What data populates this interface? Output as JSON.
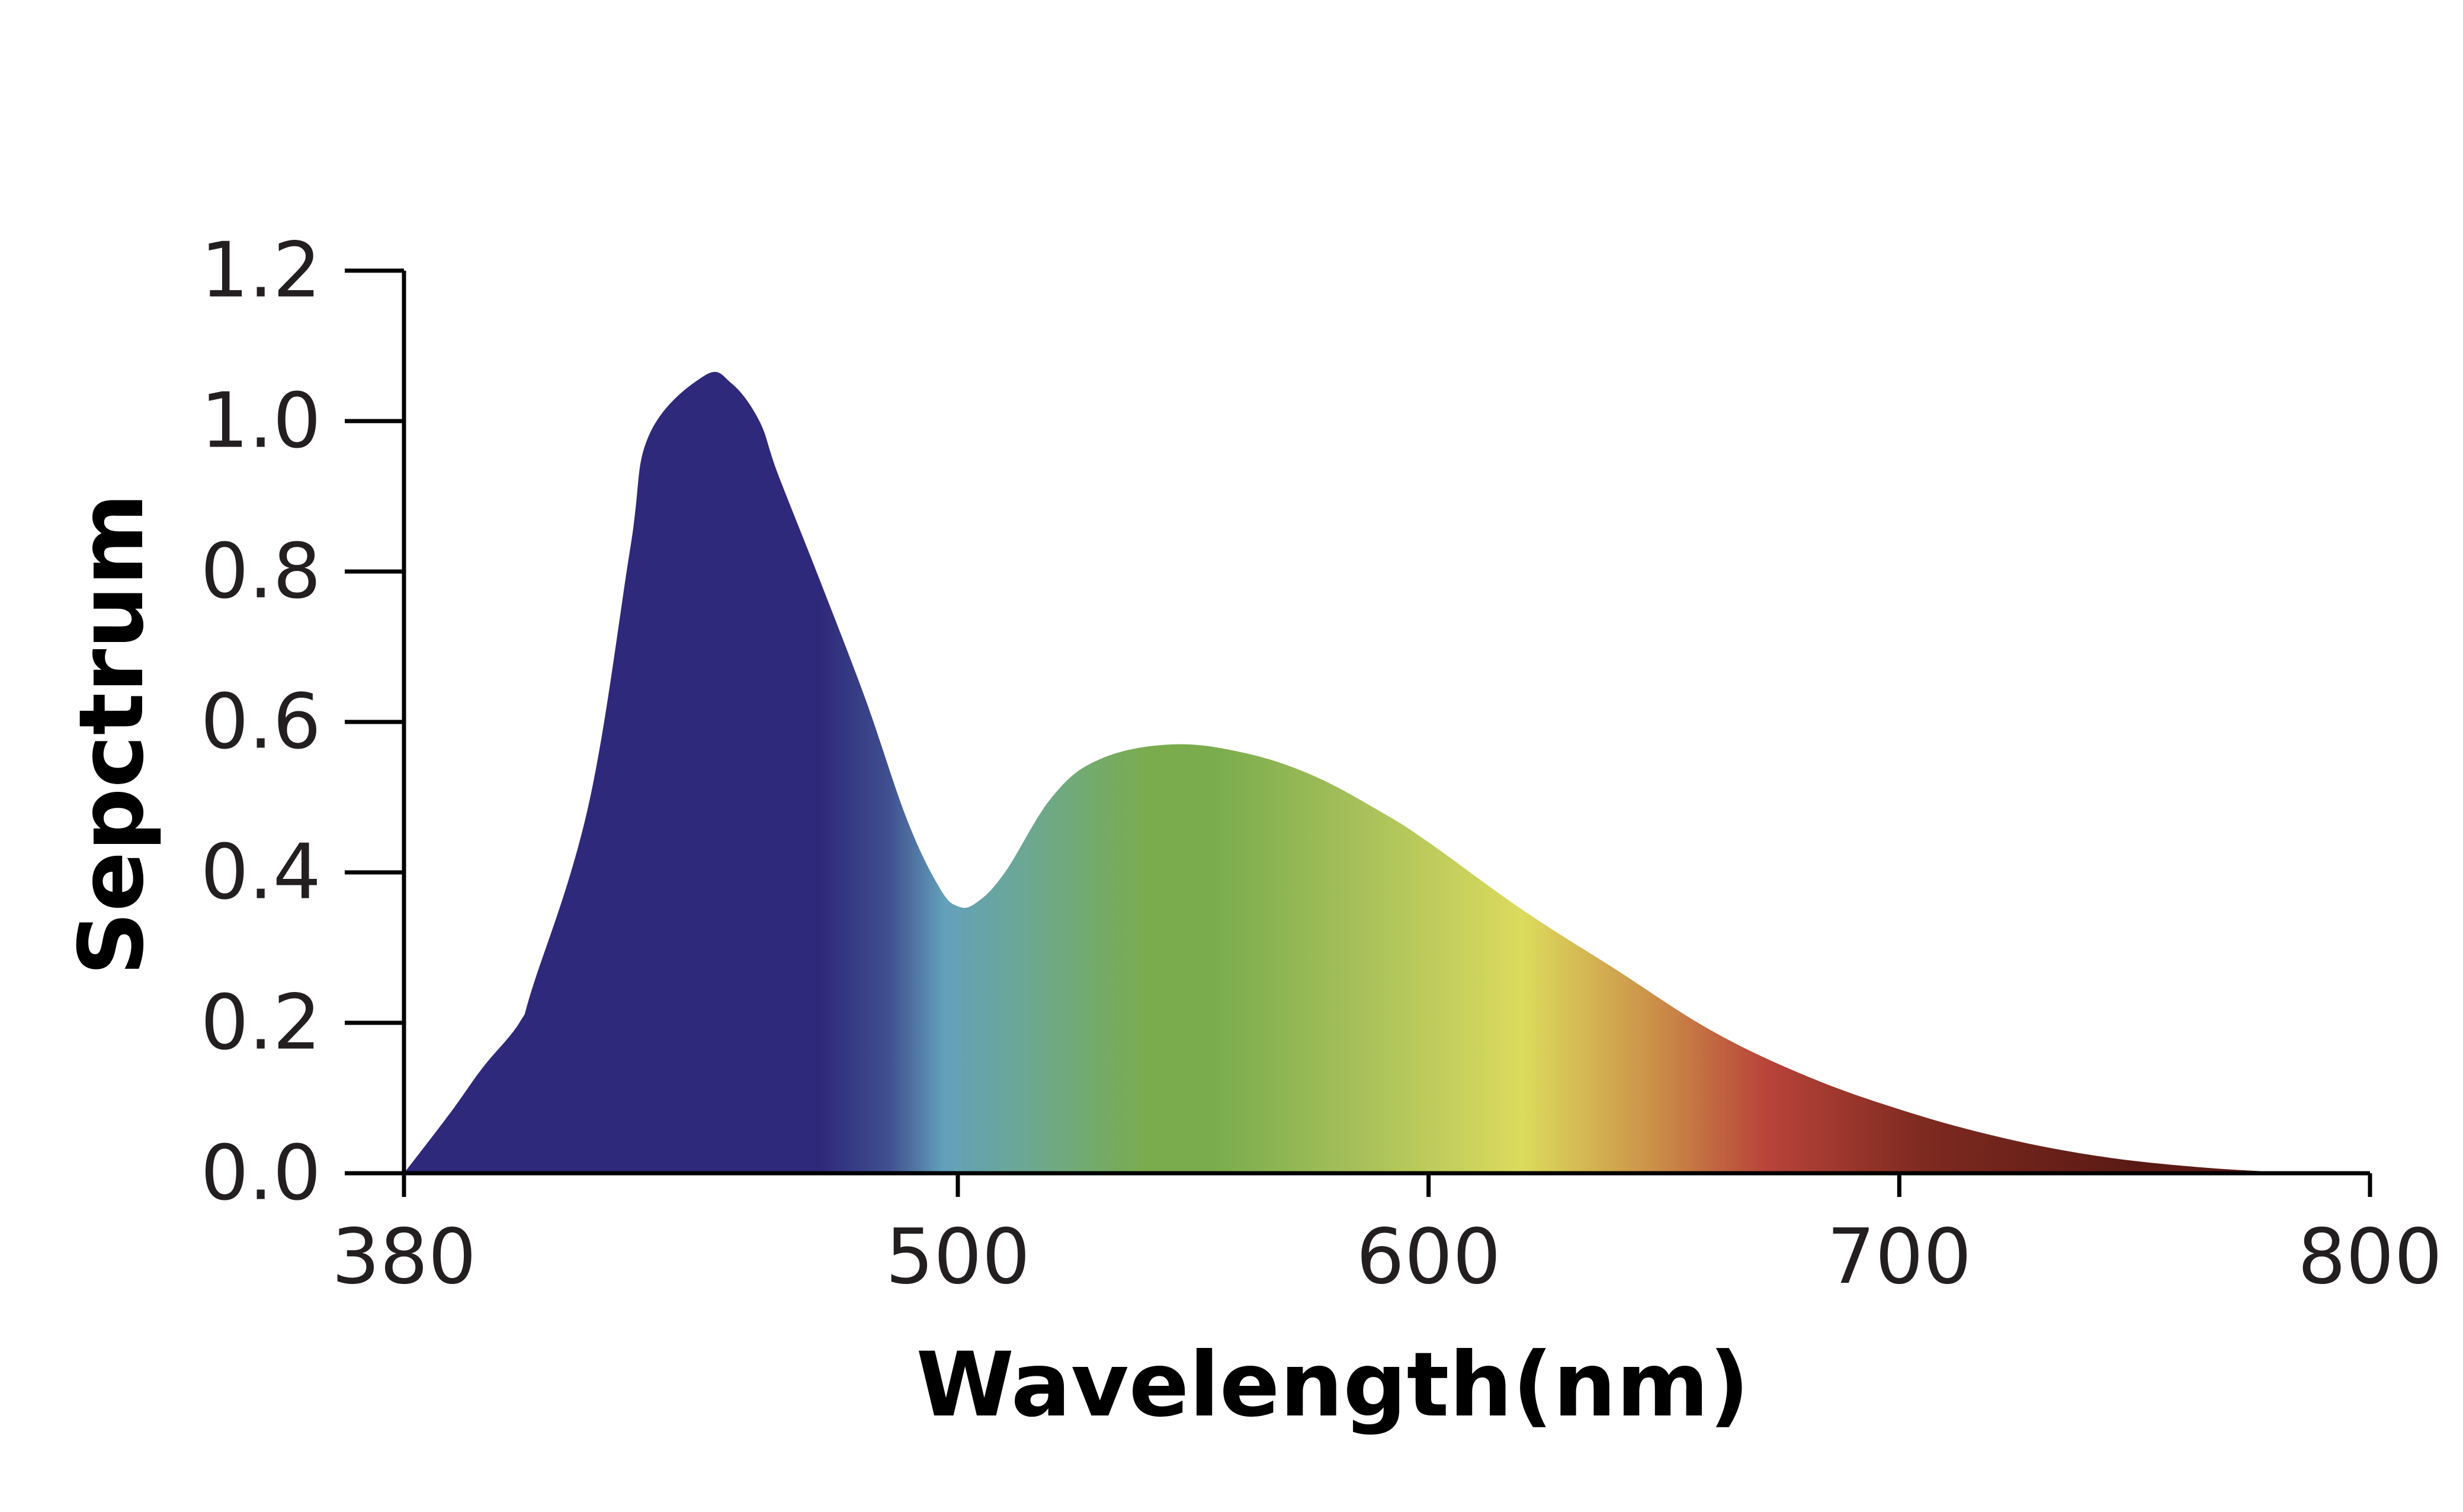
{
  "chart_data": {
    "type": "area",
    "title": "",
    "xlabel": "Wavelength(nm)",
    "ylabel": "Sepctrum",
    "xlim": [
      380,
      800
    ],
    "ylim": [
      0,
      1.2
    ],
    "x_ticks": [
      "380",
      "500",
      "600",
      "700",
      "800"
    ],
    "y_ticks": [
      "0.0",
      "0.2",
      "0.4",
      "0.6",
      "0.8",
      "1.0",
      "1.2"
    ],
    "grid": false,
    "legend": "none",
    "fill": "spectral color gradient",
    "series": [
      {
        "x": [
          380,
          390,
          397,
          405,
          408,
          420,
          429,
          433,
          445,
          451,
          457,
          461,
          470,
          480,
          489,
          496,
          500,
          504,
          510,
          520,
          530,
          545,
          560,
          575,
          590,
          600,
          620,
          640,
          660,
          680,
          700,
          720,
          740,
          760,
          780,
          800
        ],
        "y": [
          0.0,
          0.08,
          0.14,
          0.2,
          0.25,
          0.49,
          0.83,
          0.98,
          1.06,
          1.05,
          1.0,
          0.93,
          0.79,
          0.63,
          0.47,
          0.38,
          0.355,
          0.36,
          0.4,
          0.5,
          0.55,
          0.57,
          0.56,
          0.53,
          0.48,
          0.44,
          0.35,
          0.27,
          0.19,
          0.13,
          0.085,
          0.05,
          0.025,
          0.01,
          0.002,
          0.0
        ]
      }
    ],
    "colors": {
      "violet": "#2e297a",
      "blue": "#3f4f8f",
      "cyan": "#63a0bb",
      "teal": "#6ca891",
      "green": "#7aac4e",
      "yellow_green": "#a6c05a",
      "yellow": "#dcdb5d",
      "orange": "#cb8f48",
      "red": "#b8433a",
      "dark_red": "#7e2a20",
      "deep_red": "#5a1a14"
    }
  }
}
